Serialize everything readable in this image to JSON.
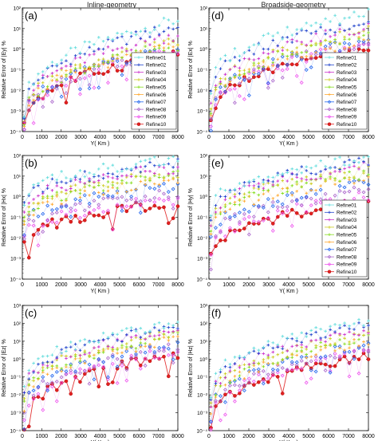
{
  "column_titles": [
    "Inline-geometry",
    "Broadside-geometry"
  ],
  "chart_data": [
    {
      "type": "scatter",
      "panel_label": "(a)",
      "xlabel": "Y( Km )",
      "ylabel": "Relative Error of |Ey| %",
      "xlim": [
        0,
        8000
      ],
      "ylim_log10": [
        -4,
        2
      ],
      "xticks": [
        "0",
        "1000",
        "2000",
        "3000",
        "4000",
        "5000",
        "6000",
        "7000",
        "8000"
      ],
      "yticks": [
        "10⁻⁴",
        "10⁻³",
        "10⁻²",
        "10⁻¹",
        "10⁰",
        "10¹",
        "10²"
      ],
      "legend": "right",
      "series_log10": {
        "start": [
          -3.0,
          -3.2,
          -3.3,
          -3.4,
          -3.5,
          -3.5,
          -3.6,
          -3.7,
          -3.8,
          -3.8
        ],
        "end": [
          1.4,
          1.1,
          0.7,
          0.4,
          0.2,
          0.1,
          0.0,
          -0.05,
          -0.1,
          -0.2
        ]
      }
    },
    {
      "type": "scatter",
      "panel_label": "(d)",
      "xlabel": "Y( Km )",
      "ylabel": "Relative Error of |Ex| %",
      "xlim": [
        0,
        8000
      ],
      "ylim_log10": [
        -4,
        2
      ],
      "xticks": [
        "0",
        "1000",
        "2000",
        "3000",
        "4000",
        "5000",
        "6000",
        "7000",
        "8000"
      ],
      "yticks": [
        "10⁻⁴",
        "10⁻³",
        "10⁻²",
        "10⁻¹",
        "10⁰",
        "10¹",
        "10²"
      ],
      "legend": "right",
      "series_log10": {
        "start": [
          -2.0,
          -2.3,
          -2.6,
          -2.9,
          -3.1,
          -3.2,
          -3.3,
          -3.4,
          -3.5,
          -3.6
        ],
        "end": [
          1.7,
          1.4,
          1.1,
          0.9,
          0.7,
          0.5,
          0.4,
          0.3,
          0.2,
          0.1
        ]
      }
    },
    {
      "type": "scatter",
      "panel_label": "(b)",
      "xlabel": "Y( Km )",
      "ylabel": "Relative Error of |Hx| %",
      "xlim": [
        0,
        8000
      ],
      "ylim_log10": [
        -4,
        2
      ],
      "xticks": [
        "0",
        "1000",
        "2000",
        "3000",
        "4000",
        "5000",
        "6000",
        "7000",
        "8000"
      ],
      "yticks": [
        "10⁻⁴",
        "10⁻³",
        "10⁻²",
        "10⁻¹",
        "10⁰",
        "10¹",
        "10²"
      ],
      "series_log10": {
        "start": [
          -0.2,
          -0.5,
          -0.8,
          -1.0,
          -1.2,
          -1.4,
          -1.6,
          -1.9,
          -2.2,
          -2.4
        ],
        "end": [
          1.8,
          1.6,
          1.4,
          1.2,
          1.0,
          0.8,
          0.5,
          0.2,
          -0.1,
          -0.3
        ]
      }
    },
    {
      "type": "scatter",
      "panel_label": "(e)",
      "xlabel": "Y( Km )",
      "ylabel": "Relative Error of |Hy| %",
      "xlim": [
        0,
        8000
      ],
      "ylim_log10": [
        -4,
        2
      ],
      "xticks": [
        "0",
        "1000",
        "2000",
        "3000",
        "4000",
        "5000",
        "6000",
        "7000",
        "8000"
      ],
      "yticks": [
        "10⁻⁴",
        "10⁻³",
        "10⁻²",
        "10⁻¹",
        "10⁰",
        "10¹",
        "10²"
      ],
      "legend": "right",
      "series_log10": {
        "start": [
          -0.8,
          -1.0,
          -1.2,
          -1.4,
          -1.6,
          -1.8,
          -2.1,
          -2.4,
          -2.8,
          -3.0
        ],
        "end": [
          1.9,
          1.7,
          1.5,
          1.3,
          1.1,
          0.9,
          0.6,
          0.3,
          0.0,
          -0.2
        ]
      }
    },
    {
      "type": "scatter",
      "panel_label": "(c)",
      "xlabel": "Y( Km )",
      "ylabel": "Relative Error of |Ez| %",
      "xlim": [
        0,
        8000
      ],
      "ylim_log10": [
        -4,
        3
      ],
      "xticks": [
        "0",
        "1000",
        "2000",
        "3000",
        "4000",
        "5000",
        "6000",
        "7000",
        "8000"
      ],
      "yticks": [
        "10⁻⁴",
        "10⁻³",
        "10⁻²",
        "10⁻¹",
        "10⁰",
        "10¹",
        "10²",
        "10³"
      ],
      "series_log10": {
        "start": [
          -1.5,
          -1.8,
          -2.0,
          -2.3,
          -2.5,
          -2.7,
          -3.0,
          -3.2,
          -3.5,
          -3.8
        ],
        "end": [
          2.0,
          1.8,
          1.6,
          1.5,
          1.3,
          1.1,
          0.9,
          0.7,
          0.5,
          0.3
        ]
      }
    },
    {
      "type": "scatter",
      "panel_label": "(f)",
      "xlabel": "Y( Km )",
      "ylabel": "Relative Error of |Hz| %",
      "xlim": [
        0,
        8000
      ],
      "ylim_log10": [
        -4,
        3
      ],
      "xticks": [
        "0",
        "1000",
        "2000",
        "3000",
        "4000",
        "5000",
        "6000",
        "7000",
        "8000"
      ],
      "yticks": [
        "10⁻⁴",
        "10⁻³",
        "10⁻²",
        "10⁻¹",
        "10⁰",
        "10¹",
        "10²",
        "10³"
      ],
      "series_log10": {
        "start": [
          -2.0,
          -2.3,
          -2.5,
          -2.7,
          -2.9,
          -3.1,
          -3.3,
          -3.5,
          -3.7,
          -3.9
        ],
        "end": [
          2.2,
          1.9,
          1.6,
          1.4,
          1.2,
          1.0,
          0.8,
          0.6,
          0.4,
          0.2
        ]
      }
    }
  ],
  "legend_entries": [
    "Refine01",
    "Refine02",
    "Refine03",
    "Refine04",
    "Refine05",
    "Refine06",
    "Refine07",
    "Refine08",
    "Refine09",
    "Refine10"
  ],
  "series_colors": [
    "#66dddd",
    "#2244cc",
    "#cc33cc",
    "#cccc22",
    "#88dd22",
    "#ffaa33",
    "#2266ee",
    "#aa66cc",
    "#ee55ee",
    "#e02020"
  ],
  "series_markers": [
    "star",
    "star",
    "star",
    "star",
    "star",
    "star",
    "diamond",
    "diamond",
    "diamond",
    "dot"
  ]
}
